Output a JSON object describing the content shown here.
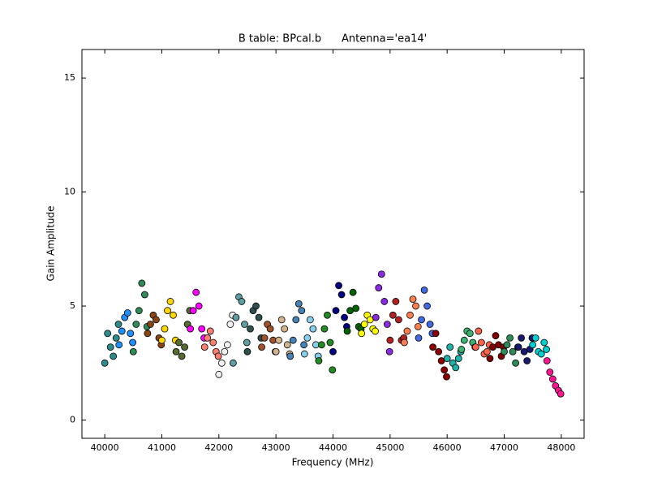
{
  "chart_data": {
    "type": "scatter",
    "title": "B table: BPcal.b      Antenna='ea14'",
    "x_label": "Frequency (MHz)",
    "y_label": "Gain Amplitude",
    "xlim": [
      39600,
      48400
    ],
    "ylim": [
      -0.8,
      16.25
    ],
    "xticks": [
      40000,
      41000,
      42000,
      43000,
      44000,
      45000,
      46000,
      47000,
      48000
    ],
    "yticks": [
      0,
      5,
      10,
      15
    ],
    "grid": false,
    "series": [
      {
        "color": "#2e8b8b",
        "x": [
          40000,
          40050,
          40100,
          40150,
          40200,
          40240
        ],
        "values": [
          2.5,
          3.8,
          3.2,
          2.8,
          3.6,
          4.2
        ]
      },
      {
        "color": "#1e90ff",
        "x": [
          40250,
          40300,
          40350,
          40400,
          40450,
          40490
        ],
        "values": [
          3.3,
          3.9,
          4.5,
          4.7,
          3.8,
          3.4
        ]
      },
      {
        "color": "#2e8b57",
        "x": [
          40500,
          40550,
          40600,
          40650,
          40700,
          40740
        ],
        "values": [
          3.0,
          4.2,
          4.8,
          6.0,
          5.5,
          4.1
        ]
      },
      {
        "color": "#8b4513",
        "x": [
          40750,
          40800,
          40850,
          40900,
          40950,
          40990
        ],
        "values": [
          3.8,
          4.2,
          4.6,
          4.4,
          3.6,
          3.3
        ]
      },
      {
        "color": "#ffd700",
        "x": [
          41000,
          41050,
          41100,
          41150,
          41200,
          41240
        ],
        "values": [
          3.5,
          4.0,
          4.8,
          5.2,
          4.6,
          3.5
        ]
      },
      {
        "color": "#556b2f",
        "x": [
          41250,
          41300,
          41350,
          41400,
          41450,
          41490
        ],
        "values": [
          3.0,
          3.4,
          2.8,
          3.2,
          4.2,
          4.8
        ]
      },
      {
        "color": "#ff00ff",
        "x": [
          41500,
          41550,
          41600,
          41650,
          41700,
          41740
        ],
        "values": [
          4.0,
          4.8,
          5.6,
          5.0,
          4.0,
          3.6
        ]
      },
      {
        "color": "#fa8072",
        "x": [
          41750,
          41800,
          41850,
          41900,
          41950,
          41990
        ],
        "values": [
          3.2,
          3.6,
          3.9,
          3.4,
          3.0,
          2.8
        ]
      },
      {
        "color": "#f0f0f0",
        "x": [
          42000,
          42050,
          42100,
          42150,
          42200,
          42240
        ],
        "values": [
          2.0,
          2.5,
          3.0,
          3.3,
          4.2,
          4.6
        ]
      },
      {
        "color": "#5f9ea0",
        "x": [
          42250,
          42300,
          42350,
          42400,
          42450,
          42490
        ],
        "values": [
          2.5,
          4.5,
          5.4,
          5.2,
          4.2,
          3.4
        ]
      },
      {
        "color": "#2f4f4f",
        "x": [
          42500,
          42550,
          42600,
          42650,
          42700,
          42740
        ],
        "values": [
          3.0,
          4.0,
          4.8,
          5.0,
          4.5,
          3.6
        ]
      },
      {
        "color": "#a0522d",
        "x": [
          42750,
          42800,
          42850,
          42900,
          42950,
          42990
        ],
        "values": [
          3.2,
          3.6,
          4.2,
          4.0,
          3.5,
          3.0
        ]
      },
      {
        "color": "#d2b48c",
        "x": [
          43000,
          43050,
          43100,
          43150,
          43200,
          43240
        ],
        "values": [
          3.0,
          3.5,
          4.4,
          4.0,
          3.3,
          2.9
        ]
      },
      {
        "color": "#4682b4",
        "x": [
          43250,
          43300,
          43350,
          43400,
          43450,
          43490
        ],
        "values": [
          2.8,
          3.5,
          4.4,
          5.1,
          4.8,
          3.3
        ]
      },
      {
        "color": "#87ceeb",
        "x": [
          43500,
          43550,
          43600,
          43650,
          43700,
          43740
        ],
        "values": [
          2.9,
          3.6,
          4.4,
          4.0,
          3.3,
          2.8
        ]
      },
      {
        "color": "#228b22",
        "x": [
          43750,
          43800,
          43850,
          43900,
          43950,
          43990
        ],
        "values": [
          2.6,
          3.3,
          4.0,
          4.6,
          3.4,
          2.2
        ]
      },
      {
        "color": "#000080",
        "x": [
          44000,
          44050,
          44100,
          44150,
          44200,
          44240
        ],
        "values": [
          3.0,
          4.8,
          5.9,
          5.5,
          4.5,
          4.1
        ]
      },
      {
        "color": "#006400",
        "x": [
          44250,
          44300,
          44350,
          44400,
          44450,
          44490
        ],
        "values": [
          3.9,
          4.8,
          5.6,
          4.9,
          4.1,
          4.0
        ]
      },
      {
        "color": "#ffff00",
        "x": [
          44500,
          44550,
          44600,
          44650,
          44700,
          44740
        ],
        "values": [
          3.8,
          4.2,
          4.6,
          4.4,
          4.0,
          3.9
        ]
      },
      {
        "color": "#8a2be2",
        "x": [
          44750,
          44800,
          44850,
          44900,
          44950,
          44990
        ],
        "values": [
          4.5,
          5.8,
          6.4,
          5.2,
          4.2,
          3.0
        ]
      },
      {
        "color": "#b22222",
        "x": [
          45000,
          45050,
          45100,
          45150,
          45200,
          45240
        ],
        "values": [
          3.5,
          4.6,
          5.2,
          4.4,
          3.5,
          3.6
        ]
      },
      {
        "color": "#ff7f50",
        "x": [
          45250,
          45300,
          45350,
          45400,
          45450,
          45490
        ],
        "values": [
          3.4,
          3.9,
          4.6,
          5.3,
          5.0,
          4.1
        ]
      },
      {
        "color": "#4169e1",
        "x": [
          45500,
          45550,
          45600,
          45650,
          45700,
          45740
        ],
        "values": [
          3.6,
          4.4,
          5.7,
          5.0,
          4.2,
          3.8
        ]
      },
      {
        "color": "#8b0000",
        "x": [
          45750,
          45800,
          45850,
          45900,
          45950,
          45990
        ],
        "values": [
          3.2,
          3.8,
          3.0,
          2.6,
          2.2,
          1.9
        ]
      },
      {
        "color": "#20b2aa",
        "x": [
          46000,
          46050,
          46100,
          46150,
          46200,
          46240
        ],
        "values": [
          2.7,
          3.2,
          2.5,
          2.3,
          2.7,
          3.0
        ]
      },
      {
        "color": "#3cb371",
        "x": [
          46250,
          46300,
          46350,
          46400,
          46450,
          46490
        ],
        "values": [
          3.1,
          3.5,
          3.9,
          3.8,
          3.4,
          3.2
        ]
      },
      {
        "color": "#ff6347",
        "x": [
          46500,
          46550,
          46600,
          46650,
          46700,
          46740
        ],
        "values": [
          3.2,
          3.9,
          3.4,
          2.9,
          3.0,
          3.3
        ]
      },
      {
        "color": "#800000",
        "x": [
          46750,
          46800,
          46850,
          46900,
          46950,
          46990
        ],
        "values": [
          2.7,
          3.2,
          3.7,
          3.3,
          2.8,
          3.2
        ]
      },
      {
        "color": "#2e8b57",
        "x": [
          47000,
          47050,
          47100,
          47150,
          47200,
          47240
        ],
        "values": [
          3.0,
          3.3,
          3.6,
          3.0,
          2.5,
          3.2
        ]
      },
      {
        "color": "#191970",
        "x": [
          47250,
          47300,
          47350,
          47400,
          47450,
          47490
        ],
        "values": [
          3.2,
          3.6,
          3.0,
          2.6,
          3.1,
          3.6
        ]
      },
      {
        "color": "#00ced1",
        "x": [
          47500,
          47550,
          47600,
          47650,
          47700,
          47740
        ],
        "values": [
          3.3,
          3.6,
          3.0,
          2.9,
          3.4,
          3.1
        ]
      },
      {
        "color": "#ff1493",
        "x": [
          47750,
          47800,
          47850,
          47900,
          47950,
          47990
        ],
        "values": [
          2.6,
          2.1,
          1.8,
          1.5,
          1.3,
          1.15
        ]
      }
    ]
  }
}
